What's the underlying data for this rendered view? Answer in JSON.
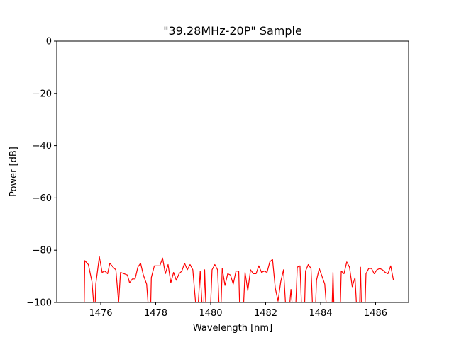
{
  "chart_data": {
    "type": "line",
    "title": "\"39.28MHz-20P\" Sample",
    "xlabel": "Wavelength [nm]",
    "ylabel": "Power [dB]",
    "xlim": [
      1474.4,
      1487.2
    ],
    "ylim": [
      -100,
      0
    ],
    "xticks": [
      1476,
      1478,
      1480,
      1482,
      1484,
      1486
    ],
    "yticks": [
      0,
      -20,
      -40,
      -60,
      -80,
      -100
    ],
    "xtick_labels": [
      "1476",
      "1478",
      "1480",
      "1482",
      "1484",
      "1486"
    ],
    "ytick_labels": [
      "0",
      "−20",
      "−40",
      "−60",
      "−80",
      "−100"
    ],
    "grid": false,
    "legend": "none",
    "series": [
      {
        "color": "#ff0000",
        "points": [
          [
            1475.4,
            -100
          ],
          [
            1475.42,
            -84
          ],
          [
            1475.55,
            -85.5
          ],
          [
            1475.68,
            -92
          ],
          [
            1475.74,
            -100
          ],
          [
            1475.8,
            -100
          ],
          [
            1475.82,
            -93
          ],
          [
            1475.95,
            -82.5
          ],
          [
            1476.05,
            -88.5
          ],
          [
            1476.15,
            -88
          ],
          [
            1476.25,
            -89
          ],
          [
            1476.33,
            -85
          ],
          [
            1476.45,
            -86.5
          ],
          [
            1476.55,
            -87.5
          ],
          [
            1476.65,
            -100
          ],
          [
            1476.72,
            -88.5
          ],
          [
            1476.85,
            -89
          ],
          [
            1476.97,
            -89.5
          ],
          [
            1477.05,
            -92.5
          ],
          [
            1477.15,
            -91
          ],
          [
            1477.25,
            -91
          ],
          [
            1477.35,
            -86.5
          ],
          [
            1477.45,
            -85
          ],
          [
            1477.55,
            -89.5
          ],
          [
            1477.67,
            -93
          ],
          [
            1477.72,
            -100
          ],
          [
            1477.82,
            -100
          ],
          [
            1477.84,
            -90.5
          ],
          [
            1477.95,
            -86
          ],
          [
            1478.05,
            -86
          ],
          [
            1478.15,
            -86
          ],
          [
            1478.25,
            -83
          ],
          [
            1478.35,
            -89
          ],
          [
            1478.45,
            -85.5
          ],
          [
            1478.55,
            -92.5
          ],
          [
            1478.65,
            -88.5
          ],
          [
            1478.75,
            -91.5
          ],
          [
            1478.85,
            -89
          ],
          [
            1478.95,
            -88
          ],
          [
            1479.05,
            -85
          ],
          [
            1479.15,
            -87.5
          ],
          [
            1479.25,
            -85.5
          ],
          [
            1479.35,
            -87.5
          ],
          [
            1479.45,
            -100
          ],
          [
            1479.55,
            -100
          ],
          [
            1479.62,
            -88
          ],
          [
            1479.68,
            -100
          ],
          [
            1479.75,
            -100
          ],
          [
            1479.78,
            -87.5
          ],
          [
            1479.82,
            -100
          ],
          [
            1480.0,
            -100
          ],
          [
            1480.05,
            -87.5
          ],
          [
            1480.15,
            -85.5
          ],
          [
            1480.25,
            -87.5
          ],
          [
            1480.3,
            -100
          ],
          [
            1480.38,
            -100
          ],
          [
            1480.42,
            -87
          ],
          [
            1480.52,
            -93.5
          ],
          [
            1480.62,
            -89
          ],
          [
            1480.72,
            -89.5
          ],
          [
            1480.82,
            -93
          ],
          [
            1480.92,
            -88
          ],
          [
            1481.02,
            -88
          ],
          [
            1481.05,
            -100
          ],
          [
            1481.2,
            -100
          ],
          [
            1481.25,
            -88.5
          ],
          [
            1481.35,
            -95.5
          ],
          [
            1481.45,
            -87.5
          ],
          [
            1481.55,
            -89
          ],
          [
            1481.65,
            -89
          ],
          [
            1481.75,
            -86
          ],
          [
            1481.85,
            -88.5
          ],
          [
            1481.95,
            -88
          ],
          [
            1482.05,
            -88.5
          ],
          [
            1482.15,
            -84.5
          ],
          [
            1482.25,
            -83.5
          ],
          [
            1482.35,
            -94.5
          ],
          [
            1482.45,
            -99.5
          ],
          [
            1482.55,
            -92
          ],
          [
            1482.65,
            -87.5
          ],
          [
            1482.72,
            -100
          ],
          [
            1482.88,
            -100
          ],
          [
            1482.92,
            -95
          ],
          [
            1482.96,
            -100
          ],
          [
            1483.1,
            -100
          ],
          [
            1483.15,
            -86.5
          ],
          [
            1483.25,
            -86
          ],
          [
            1483.3,
            -100
          ],
          [
            1483.42,
            -100
          ],
          [
            1483.45,
            -88
          ],
          [
            1483.55,
            -85.5
          ],
          [
            1483.65,
            -87
          ],
          [
            1483.7,
            -100
          ],
          [
            1483.82,
            -100
          ],
          [
            1483.85,
            -91.5
          ],
          [
            1483.95,
            -87
          ],
          [
            1484.05,
            -90
          ],
          [
            1484.15,
            -93
          ],
          [
            1484.2,
            -100
          ],
          [
            1484.42,
            -100
          ],
          [
            1484.45,
            -88.5
          ],
          [
            1484.48,
            -100
          ],
          [
            1484.72,
            -100
          ],
          [
            1484.75,
            -88
          ],
          [
            1484.85,
            -89
          ],
          [
            1484.95,
            -84.5
          ],
          [
            1485.05,
            -86.5
          ],
          [
            1485.15,
            -94
          ],
          [
            1485.25,
            -90.5
          ],
          [
            1485.3,
            -100
          ],
          [
            1485.42,
            -100
          ],
          [
            1485.45,
            -86.5
          ],
          [
            1485.48,
            -100
          ],
          [
            1485.62,
            -100
          ],
          [
            1485.65,
            -89
          ],
          [
            1485.75,
            -87
          ],
          [
            1485.85,
            -87
          ],
          [
            1485.95,
            -89
          ],
          [
            1486.05,
            -87.5
          ],
          [
            1486.15,
            -87
          ],
          [
            1486.25,
            -87.5
          ],
          [
            1486.35,
            -88.5
          ],
          [
            1486.45,
            -89
          ],
          [
            1486.55,
            -86
          ],
          [
            1486.65,
            -91.5
          ]
        ]
      }
    ]
  }
}
